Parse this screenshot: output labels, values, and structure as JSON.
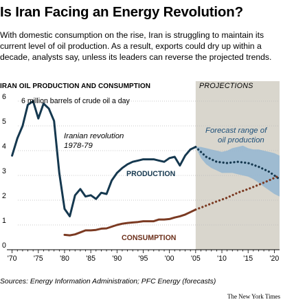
{
  "title": "Is Iran Facing an Energy Revolution?",
  "intro": "With domestic consumption on the rise, Iran is struggling to maintain its current level of oil production. As a result, exports could dry up within a decade, analysts say, unless its leaders can reverse the projected trends.",
  "source": "Sources: Energy Information Administration; PFC Energy (forecasts)",
  "credit": "The New York Times",
  "chart_data": {
    "type": "line",
    "title": "IRAN OIL PRODUCTION AND CONSUMPTION",
    "ylabel": "6 million barrels of crude oil a day",
    "x_range": [
      1969,
      2021
    ],
    "ylim": [
      0,
      6
    ],
    "y_ticks": [
      "0",
      "1",
      "2",
      "3",
      "4",
      "5",
      "6"
    ],
    "y_tick_values": [
      0,
      1,
      2,
      3,
      4,
      5,
      6
    ],
    "x_ticks": [
      "'70",
      "'75",
      "'80",
      "'85",
      "'90",
      "'95",
      "'00",
      "'05",
      "'10",
      "'15",
      "'20"
    ],
    "x_tick_values": [
      1970,
      1975,
      1980,
      1985,
      1990,
      1995,
      2000,
      2005,
      2010,
      2015,
      2020
    ],
    "projection_label": "PROJECTIONS",
    "projection_range": [
      2005,
      2021
    ],
    "series": [
      {
        "name": "PRODUCTION",
        "color": "#15384f",
        "x": [
          1970,
          1971,
          1972,
          1973,
          1974,
          1975,
          1976,
          1977,
          1978,
          1979,
          1980,
          1981,
          1982,
          1983,
          1984,
          1985,
          1986,
          1987,
          1988,
          1989,
          1990,
          1991,
          1992,
          1993,
          1994,
          1995,
          1996,
          1997,
          1998,
          1999,
          2000,
          2001,
          2002,
          2003,
          2004,
          2005
        ],
        "values": [
          3.8,
          4.5,
          5.0,
          5.85,
          6.0,
          5.3,
          5.9,
          5.7,
          5.2,
          3.1,
          1.65,
          1.35,
          2.2,
          2.45,
          2.15,
          2.2,
          2.05,
          2.3,
          2.25,
          2.8,
          3.1,
          3.3,
          3.45,
          3.55,
          3.6,
          3.65,
          3.65,
          3.65,
          3.6,
          3.55,
          3.7,
          3.75,
          3.4,
          3.8,
          4.05,
          4.15
        ]
      },
      {
        "name": "PRODUCTION (projected)",
        "color": "#15384f",
        "x": [
          2005,
          2007,
          2009,
          2011,
          2013,
          2015,
          2017,
          2019,
          2021
        ],
        "values": [
          4.15,
          3.75,
          3.55,
          3.5,
          3.55,
          3.5,
          3.35,
          3.15,
          2.85
        ]
      },
      {
        "name": "CONSUMPTION",
        "color": "#7b3a22",
        "x": [
          1980,
          1981,
          1982,
          1983,
          1984,
          1985,
          1986,
          1987,
          1988,
          1989,
          1990,
          1991,
          1992,
          1993,
          1994,
          1995,
          1996,
          1997,
          1998,
          1999,
          2000,
          2001,
          2002,
          2003,
          2004,
          2005
        ],
        "values": [
          0.6,
          0.58,
          0.62,
          0.7,
          0.78,
          0.78,
          0.8,
          0.85,
          0.86,
          0.93,
          1.0,
          1.05,
          1.08,
          1.1,
          1.12,
          1.15,
          1.15,
          1.15,
          1.22,
          1.22,
          1.24,
          1.3,
          1.35,
          1.42,
          1.52,
          1.62
        ]
      },
      {
        "name": "CONSUMPTION (projected)",
        "color": "#7b3a22",
        "x": [
          2005,
          2007,
          2009,
          2011,
          2013,
          2015,
          2017,
          2019,
          2021
        ],
        "values": [
          1.62,
          1.78,
          1.95,
          2.1,
          2.3,
          2.45,
          2.62,
          2.8,
          3.0
        ]
      }
    ],
    "forecast_band": {
      "label": "Forecast range of oil production",
      "color": "#8fb4d2",
      "x": [
        2005,
        2006,
        2007,
        2008,
        2009,
        2010,
        2011,
        2012,
        2013,
        2014,
        2015,
        2016,
        2017,
        2018,
        2019,
        2020,
        2021
      ],
      "upper": [
        4.15,
        4.15,
        4.1,
        4.05,
        4.0,
        3.95,
        4.0,
        4.1,
        4.15,
        4.2,
        4.1,
        4.05,
        4.05,
        4.0,
        3.95,
        3.9,
        3.8
      ],
      "lower": [
        4.15,
        3.7,
        3.45,
        3.3,
        3.2,
        3.1,
        3.1,
        3.1,
        3.05,
        3.0,
        2.95,
        2.85,
        2.7,
        2.55,
        2.4,
        2.25,
        2.15
      ]
    },
    "annotations": [
      {
        "text": "Iranian revolution",
        "italic": true
      },
      {
        "text": "1978-79",
        "italic": true
      },
      {
        "text": "PRODUCTION",
        "bold": true
      },
      {
        "text": "CONSUMPTION",
        "bold": true
      }
    ]
  }
}
